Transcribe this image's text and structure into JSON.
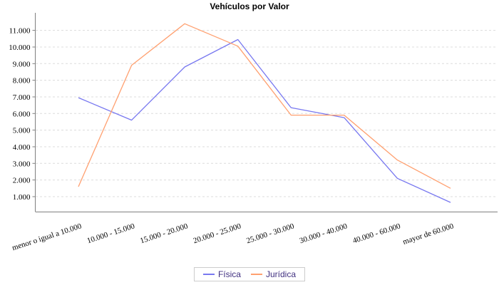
{
  "chart_data": {
    "type": "line",
    "title": "Vehículos por Valor",
    "categories": [
      "menor o igual a 10.000",
      "10.000 - 15.000",
      "15.000 - 20.000",
      "20.000 - 25.000",
      "25.000 - 30.000",
      "30.000 - 40.000",
      "40.000 - 60.000",
      "mayor de 60.000"
    ],
    "series": [
      {
        "name": "Física",
        "color": "#7878F0",
        "values": [
          6950,
          5600,
          8800,
          10450,
          6350,
          5750,
          2100,
          650
        ]
      },
      {
        "name": "Jurídica",
        "color": "#FFA070",
        "values": [
          1600,
          8900,
          11400,
          10050,
          5900,
          5900,
          3200,
          1500
        ]
      }
    ],
    "y_ticks": [
      {
        "value": 1000,
        "label": "1.000"
      },
      {
        "value": 2000,
        "label": "2.000"
      },
      {
        "value": 3000,
        "label": "3.000"
      },
      {
        "value": 4000,
        "label": "4.000"
      },
      {
        "value": 5000,
        "label": "5.000"
      },
      {
        "value": 6000,
        "label": "6.000"
      },
      {
        "value": 7000,
        "label": "7.000"
      },
      {
        "value": 8000,
        "label": "8.000"
      },
      {
        "value": 9000,
        "label": "9.000"
      },
      {
        "value": 10000,
        "label": "10.000"
      },
      {
        "value": 11000,
        "label": "11.000"
      }
    ],
    "ylim": [
      0,
      12000
    ],
    "xlabel": "",
    "ylabel": "",
    "grid": "horizontal-dashed",
    "legend_position": "bottom"
  },
  "colors": {
    "axis": "#808080",
    "grid": "#dcdcdc",
    "tick_label": "#000000",
    "legend_text": "#403080",
    "legend_border": "#cccccc",
    "background": "#ffffff"
  }
}
